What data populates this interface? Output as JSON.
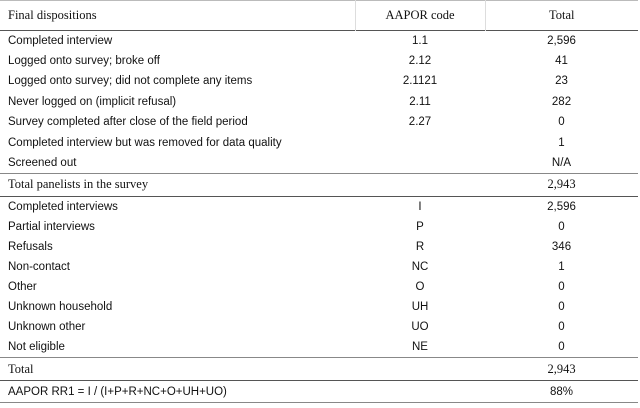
{
  "header": [
    "Final dispositions",
    "AAPOR code",
    "Total"
  ],
  "dispositions": [
    [
      "Completed interview",
      "1.1",
      "2,596"
    ],
    [
      "Logged onto survey; broke off",
      "2.12",
      "41"
    ],
    [
      "Logged onto survey; did not complete any items",
      "2.1121",
      "23"
    ],
    [
      "Never logged on (implicit refusal)",
      "2.11",
      "282"
    ],
    [
      "Survey completed after close of the field period",
      "2.27",
      "0"
    ],
    [
      "Completed interview but was removed for data quality",
      null,
      "1"
    ],
    [
      "Screened out",
      null,
      "N/A"
    ]
  ],
  "total_panelists": [
    "Total panelists in the survey",
    null,
    "2,943"
  ],
  "codes": [
    [
      "Completed interviews",
      "I",
      "2,596"
    ],
    [
      "Partial interviews",
      "P",
      "0"
    ],
    [
      "Refusals",
      "R",
      "346"
    ],
    [
      "Non-contact",
      "NC",
      "1"
    ],
    [
      "Other",
      "O",
      "0"
    ],
    [
      "Unknown household",
      "UH",
      "0"
    ],
    [
      "Unknown other",
      "UO",
      "0"
    ],
    [
      "Not eligible",
      "NE",
      "0"
    ]
  ],
  "total": [
    "Total",
    null,
    "2,943"
  ],
  "response_rate": [
    "AAPOR RR1 = I / (I+P+R+NC+O+UH+UO)",
    null,
    "88%"
  ]
}
